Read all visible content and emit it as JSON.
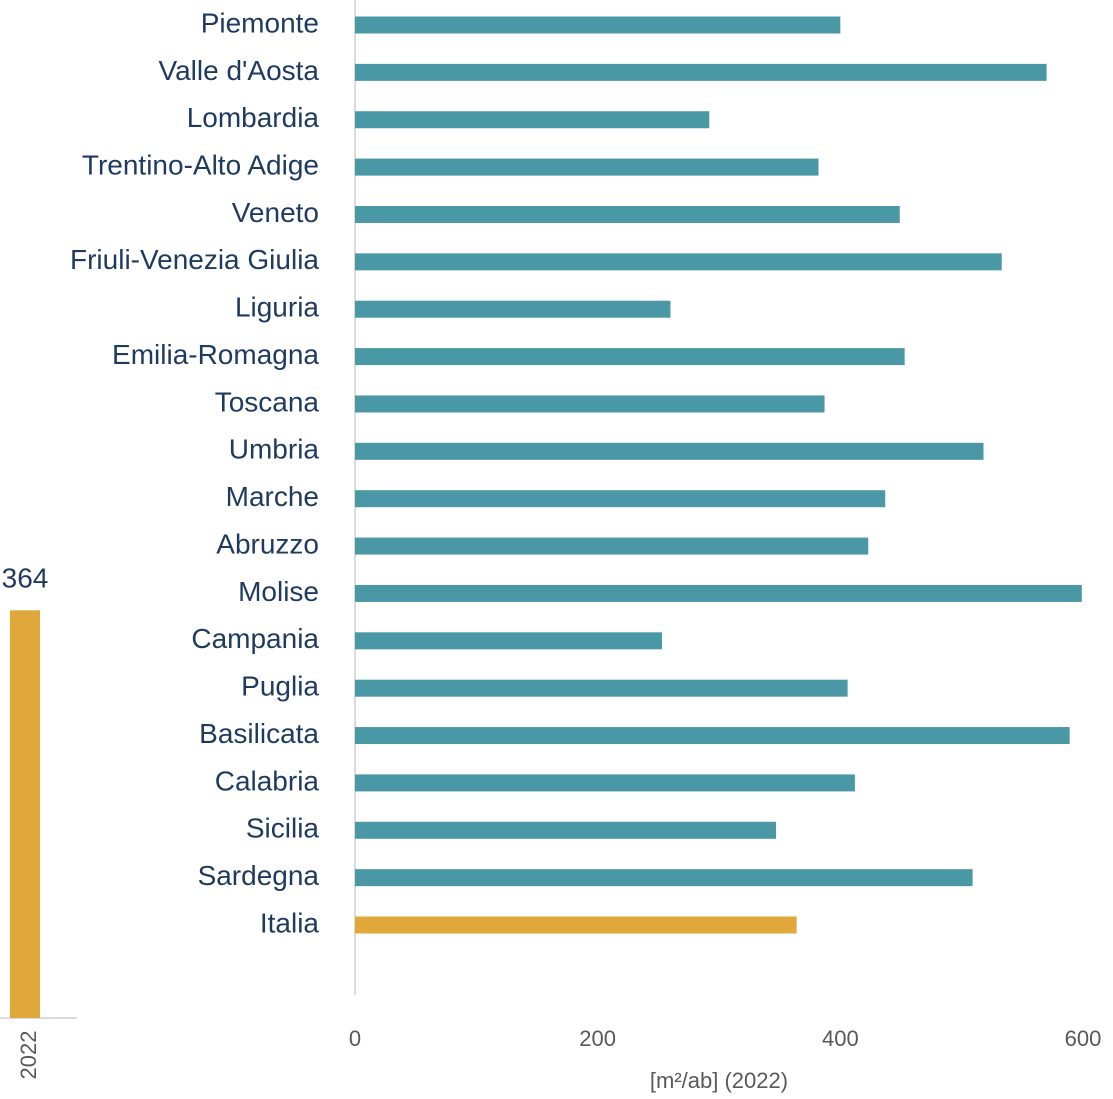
{
  "chart_data": [
    {
      "type": "bar",
      "orientation": "horizontal",
      "categories": [
        "Piemonte",
        "Valle d'Aosta",
        "Lombardia",
        "Trentino-Alto Adige",
        "Veneto",
        "Friuli-Venezia Giulia",
        "Liguria",
        "Emilia-Romagna",
        "Toscana",
        "Umbria",
        "Marche",
        "Abruzzo",
        "Molise",
        "Campania",
        "Puglia",
        "Basilicata",
        "Calabria",
        "Sicilia",
        "Sardegna",
        "Italia"
      ],
      "values": [
        400,
        570,
        292,
        382,
        449,
        533,
        260,
        453,
        387,
        518,
        437,
        423,
        599,
        253,
        406,
        589,
        412,
        347,
        509,
        364
      ],
      "colors": [
        "#4a98a5",
        "#4a98a5",
        "#4a98a5",
        "#4a98a5",
        "#4a98a5",
        "#4a98a5",
        "#4a98a5",
        "#4a98a5",
        "#4a98a5",
        "#4a98a5",
        "#4a98a5",
        "#4a98a5",
        "#4a98a5",
        "#4a98a5",
        "#4a98a5",
        "#4a98a5",
        "#4a98a5",
        "#4a98a5",
        "#4a98a5",
        "#e0a83a"
      ],
      "xlim": [
        0,
        600
      ],
      "xticks": [
        0,
        200,
        400,
        600
      ],
      "x_label": "[m²/ab] (2022)",
      "grid": false
    },
    {
      "type": "bar",
      "orientation": "vertical",
      "categories": [
        "2022"
      ],
      "values": [
        364
      ],
      "color": "#e0a83a",
      "ylim": [
        0,
        400
      ]
    }
  ]
}
